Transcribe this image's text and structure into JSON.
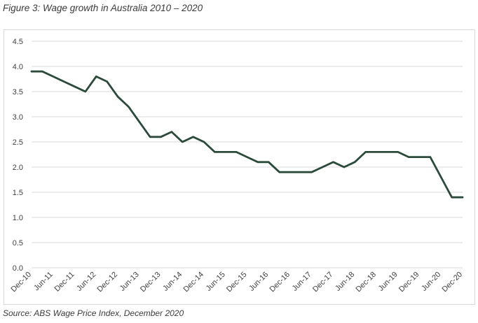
{
  "figure_title": "Figure 3: Wage growth in Australia 2010 – 2020",
  "source_note": "Source: ABS Wage Price Index, December 2020",
  "chart_data": {
    "type": "line",
    "title": "",
    "xlabel": "",
    "ylabel": "",
    "ylim": [
      0,
      4.5
    ],
    "yticks": [
      "0.0",
      "0.5",
      "1.0",
      "1.5",
      "2.0",
      "2.5",
      "3.0",
      "3.5",
      "4.0",
      "4.5"
    ],
    "grid": "horizontal",
    "legend": "none",
    "line_color": "#2b4a3c",
    "grid_color": "#d9d9d9",
    "x_tick_labels": [
      "Dec-10",
      "Jun-11",
      "Dec-11",
      "Jun-12",
      "Dec-12",
      "Jun-13",
      "Dec-13",
      "Jun-14",
      "Dec-14",
      "Jun-15",
      "Dec-15",
      "Jun-16",
      "Dec-16",
      "Jun-17",
      "Dec-17",
      "Jun-18",
      "Dec-18",
      "Jun-19",
      "Dec-19",
      "Jun-20",
      "Dec-20"
    ],
    "x": [
      "Dec-10",
      "Mar-11",
      "Jun-11",
      "Sep-11",
      "Dec-11",
      "Mar-12",
      "Jun-12",
      "Sep-12",
      "Dec-12",
      "Mar-13",
      "Jun-13",
      "Sep-13",
      "Dec-13",
      "Mar-14",
      "Jun-14",
      "Sep-14",
      "Dec-14",
      "Mar-15",
      "Jun-15",
      "Sep-15",
      "Dec-15",
      "Mar-16",
      "Jun-16",
      "Sep-16",
      "Dec-16",
      "Mar-17",
      "Jun-17",
      "Sep-17",
      "Dec-17",
      "Mar-18",
      "Jun-18",
      "Sep-18",
      "Dec-18",
      "Mar-19",
      "Jun-19",
      "Sep-19",
      "Dec-19",
      "Mar-20",
      "Jun-20",
      "Sep-20",
      "Dec-20"
    ],
    "series": [
      {
        "values": [
          3.9,
          3.9,
          3.8,
          3.7,
          3.6,
          3.5,
          3.8,
          3.7,
          3.4,
          3.2,
          2.9,
          2.6,
          2.6,
          2.7,
          2.5,
          2.6,
          2.5,
          2.3,
          2.3,
          2.3,
          2.2,
          2.1,
          2.1,
          1.9,
          1.9,
          1.9,
          1.9,
          2.0,
          2.1,
          2.0,
          2.1,
          2.3,
          2.3,
          2.3,
          2.3,
          2.2,
          2.2,
          2.2,
          1.8,
          1.4,
          1.4
        ]
      }
    ]
  }
}
